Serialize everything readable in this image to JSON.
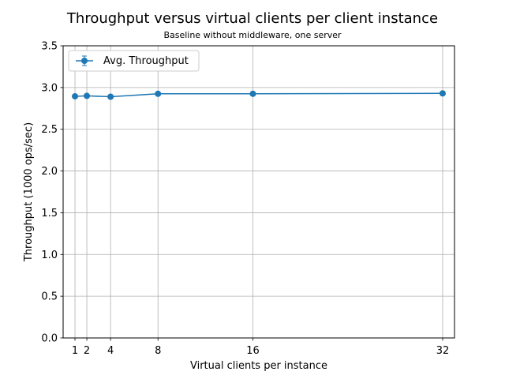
{
  "chart_data": {
    "type": "line",
    "title": "Throughput versus virtual clients per client instance",
    "subtitle": "Baseline without middleware, one server",
    "xlabel": "Virtual clients per instance",
    "ylabel": "Throughput (1000 ops/sec)",
    "x": [
      1,
      2,
      4,
      8,
      16,
      32
    ],
    "xticks": [
      1,
      2,
      4,
      8,
      16,
      32
    ],
    "xlim": [
      0,
      33
    ],
    "ylim": [
      0.0,
      3.5
    ],
    "yticks": [
      "0.0",
      "0.5",
      "1.0",
      "1.5",
      "2.0",
      "2.5",
      "3.0",
      "3.5"
    ],
    "grid": true,
    "legend_position": "upper-left",
    "series": [
      {
        "name": "Avg. Throughput",
        "color": "#1f77b4",
        "marker": "circle",
        "error_bars": true,
        "values": [
          2.895,
          2.9,
          2.89,
          2.925,
          2.925,
          2.93
        ]
      }
    ]
  }
}
